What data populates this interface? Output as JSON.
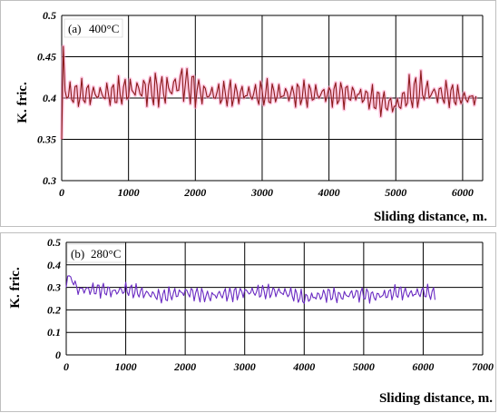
{
  "chart_data": [
    {
      "id": "a",
      "type": "line",
      "annotation_label": "(a)",
      "annotation_temp": "400°C",
      "ylabel": "K. fric.",
      "xlabel": "Sliding distance, m.",
      "xlim": [
        0,
        6300
      ],
      "ylim": [
        0.3,
        0.5
      ],
      "x_ticks": [
        0,
        1000,
        2000,
        3000,
        4000,
        5000,
        6000
      ],
      "x_tick_labels": [
        "0",
        "1000",
        "2000",
        "3000",
        "4000",
        "5000",
        "6000"
      ],
      "y_ticks": [
        0.3,
        0.35,
        0.4,
        0.45,
        0.5
      ],
      "y_tick_labels": [
        "0.3",
        "0.35",
        "0.4",
        "0.45",
        "0.5"
      ],
      "grid": true,
      "line_color": "#8b1a1a",
      "halo_color": "#ff9ccb",
      "series": [
        {
          "x": [
            0,
            20,
            40,
            80,
            200,
            400,
            600,
            800,
            1000,
            1200,
            1400,
            1600,
            1800,
            2000,
            2200,
            2400,
            2600,
            2800,
            3000,
            3200,
            3400,
            3600,
            3800,
            4000,
            4200,
            4400,
            4600,
            4800,
            5000,
            5200,
            5400,
            5600,
            5800,
            6000,
            6200
          ],
          "y": [
            0.35,
            0.48,
            0.41,
            0.405,
            0.405,
            0.405,
            0.405,
            0.405,
            0.41,
            0.41,
            0.41,
            0.41,
            0.42,
            0.41,
            0.405,
            0.405,
            0.405,
            0.405,
            0.405,
            0.405,
            0.405,
            0.405,
            0.405,
            0.405,
            0.405,
            0.405,
            0.4,
            0.395,
            0.39,
            0.405,
            0.41,
            0.405,
            0.405,
            0.4,
            0.4
          ],
          "band": [
            0.01,
            0.0,
            0.02,
            0.02,
            0.02,
            0.02,
            0.02,
            0.02,
            0.025,
            0.025,
            0.025,
            0.03,
            0.03,
            0.025,
            0.02,
            0.02,
            0.02,
            0.02,
            0.02,
            0.02,
            0.02,
            0.02,
            0.02,
            0.02,
            0.02,
            0.02,
            0.02,
            0.02,
            0.02,
            0.025,
            0.03,
            0.02,
            0.02,
            0.015,
            0.015
          ]
        }
      ]
    },
    {
      "id": "b",
      "type": "line",
      "annotation_label": "(b)",
      "annotation_temp": "280°C",
      "ylabel": "K. fric.",
      "xlabel": "Sliding distance, m.",
      "xlim": [
        0,
        7000
      ],
      "ylim": [
        0,
        0.5
      ],
      "x_ticks": [
        0,
        1000,
        2000,
        3000,
        4000,
        5000,
        6000,
        7000
      ],
      "x_tick_labels": [
        "0",
        "1000",
        "2000",
        "3000",
        "4000",
        "5000",
        "6000",
        "7000"
      ],
      "y_ticks": [
        0,
        0.1,
        0.2,
        0.3,
        0.4,
        0.5
      ],
      "y_tick_labels": [
        "0",
        "0.1",
        "0.2",
        "0.3",
        "0.4",
        "0.5"
      ],
      "grid": true,
      "line_color": "#6a2bc2",
      "series": [
        {
          "x": [
            0,
            30,
            200,
            400,
            600,
            800,
            1000,
            1200,
            1400,
            1600,
            1800,
            2000,
            2200,
            2400,
            2600,
            2800,
            3000,
            3200,
            3400,
            3600,
            3800,
            4000,
            4200,
            4400,
            4600,
            4800,
            5000,
            5200,
            5400,
            5600,
            5800,
            6000,
            6200
          ],
          "y": [
            0.3,
            0.36,
            0.29,
            0.29,
            0.29,
            0.28,
            0.29,
            0.28,
            0.27,
            0.26,
            0.27,
            0.28,
            0.27,
            0.26,
            0.27,
            0.27,
            0.28,
            0.28,
            0.28,
            0.28,
            0.27,
            0.25,
            0.26,
            0.27,
            0.26,
            0.27,
            0.27,
            0.26,
            0.27,
            0.28,
            0.27,
            0.28,
            0.27
          ],
          "band": [
            0.02,
            0.0,
            0.04,
            0.04,
            0.04,
            0.04,
            0.04,
            0.04,
            0.04,
            0.04,
            0.04,
            0.04,
            0.04,
            0.04,
            0.04,
            0.04,
            0.04,
            0.04,
            0.04,
            0.04,
            0.04,
            0.04,
            0.04,
            0.04,
            0.04,
            0.04,
            0.04,
            0.04,
            0.04,
            0.04,
            0.04,
            0.04,
            0.04
          ]
        }
      ]
    }
  ]
}
